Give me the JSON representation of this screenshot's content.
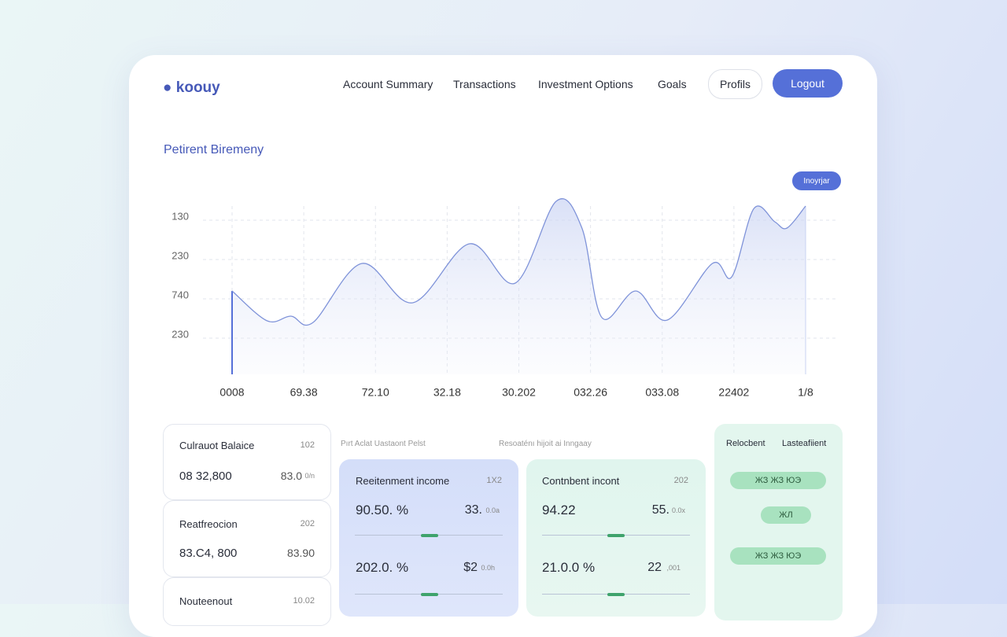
{
  "nav": {
    "logo": "koouy",
    "links": [
      "Account Summary",
      "Transactions",
      "Investment Options",
      "Goals"
    ],
    "profile": "Profils",
    "logout": "Logout"
  },
  "chart_data": {
    "type": "line",
    "title": "Petirent Biremeny",
    "badge": "Inoyrjar",
    "x": [
      0,
      0.49,
      0.82,
      1.13,
      1.81,
      2.52,
      3.31,
      3.95,
      4.52,
      4.88,
      5.16,
      5.63,
      6.07,
      6.7,
      6.97,
      7.28,
      7.57,
      7.74,
      8
    ],
    "series": [
      {
        "color": "#7f93d9",
        "values": [
          2.12,
          1.36,
          1.48,
          1.32,
          2.82,
          1.82,
          3.32,
          2.32,
          4.4,
          3.72,
          1.44,
          2.12,
          1.38,
          2.82,
          2.48,
          4.22,
          3.88,
          3.72,
          4.28
        ]
      }
    ],
    "xlim": [
      0,
      8
    ],
    "xticks": [
      {
        "value": 0,
        "label": "0008"
      },
      {
        "value": 1,
        "label": "69.38"
      },
      {
        "value": 2,
        "label": "72.10"
      },
      {
        "value": 3,
        "label": "32.18"
      },
      {
        "value": 4,
        "label": "30.202"
      },
      {
        "value": 5,
        "label": "032.26"
      },
      {
        "value": 6,
        "label": "033.08"
      },
      {
        "value": 7,
        "label": "22402"
      },
      {
        "value": 8,
        "label": "1/8"
      }
    ],
    "ylim": [
      0,
      4.5
    ],
    "yticks": [
      {
        "value": 4,
        "label": "130"
      },
      {
        "value": 3,
        "label": "230"
      },
      {
        "value": 2,
        "label": "740"
      },
      {
        "value": 1,
        "label": "230"
      }
    ],
    "grid": true
  },
  "left_cards": [
    {
      "title": "Culrauot Balaice",
      "tag": "102",
      "value": "08 32,800",
      "side": "83.0",
      "unit": "0/n"
    },
    {
      "title": "Reatfreocion",
      "tag": "202",
      "value": "83.C4, 800",
      "side": "83.90"
    },
    {
      "title": "Nouteenout",
      "tag": "10.02"
    }
  ],
  "section_labels": [
    "Pırt Aclat Uastaont Pelst",
    "Resoaténı hijoit ai Inngaay"
  ],
  "blue_card": {
    "title": "Reeitenment income",
    "tag": "1X2",
    "rows": [
      {
        "value": "90.50. %",
        "side": "33.",
        "unit": "0.0a"
      },
      {
        "value": "202.0. %",
        "side": "$2",
        "unit": "0.0h"
      }
    ]
  },
  "green_card": {
    "title": "Contnbent incont",
    "tag": "202",
    "rows": [
      {
        "value": "94.22",
        "side": "55.",
        "unit": "0.0x"
      },
      {
        "value": "21.0.0 %",
        "side": "22",
        "unit": ",001"
      }
    ]
  },
  "right_panel": {
    "headers": [
      "Relocbent",
      "Lasteafiient"
    ],
    "pills": [
      "ЖЗ  ЖЗ  ЮЭ",
      "ЖЛ",
      "ЖЗ  ЖЗ  ЮЭ"
    ]
  }
}
